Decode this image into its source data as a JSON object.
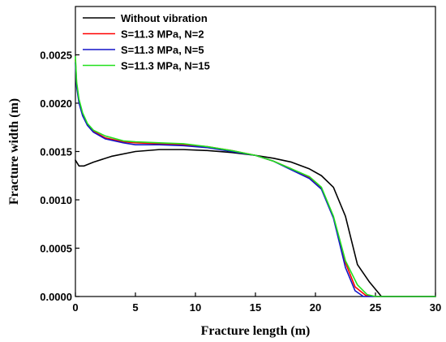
{
  "chart_data": {
    "type": "line",
    "xlabel": "Fracture length (m)",
    "ylabel": "Fracture width (m)",
    "xlim": [
      0,
      30
    ],
    "ylim": [
      0,
      0.003
    ],
    "xticks": [
      "0",
      "5",
      "10",
      "15",
      "20",
      "25",
      "30"
    ],
    "yticks": [
      "0.0000",
      "0.0005",
      "0.0010",
      "0.0015",
      "0.0020",
      "0.0025"
    ],
    "legend_position": "top-left",
    "series": [
      {
        "name": "Without vibration",
        "color": "#000000",
        "x": [
          0,
          0.3,
          0.7,
          1.5,
          3,
          5,
          7,
          9,
          11,
          13,
          15,
          16.5,
          18,
          19.5,
          20.5,
          21.5,
          22.5,
          23.5,
          24.5,
          25.5,
          30
        ],
        "y": [
          0.00141,
          0.00135,
          0.00135,
          0.00139,
          0.00145,
          0.0015,
          0.00152,
          0.00152,
          0.00151,
          0.00149,
          0.00146,
          0.00143,
          0.00139,
          0.00132,
          0.00125,
          0.00113,
          0.00083,
          0.00033,
          0.00015,
          0.0,
          0.0
        ]
      },
      {
        "name": "S=11.3 MPa, N=2",
        "color": "#ff0000",
        "x": [
          0,
          0.1,
          0.3,
          0.6,
          1,
          1.5,
          2.5,
          4,
          5,
          7,
          9,
          11,
          13,
          15,
          16.5,
          18,
          19.5,
          20.5,
          21.5,
          22.5,
          23.3,
          24.2,
          25,
          30
        ],
        "y": [
          0.00245,
          0.0022,
          0.00202,
          0.00189,
          0.00178,
          0.00171,
          0.00164,
          0.0016,
          0.00159,
          0.00158,
          0.00157,
          0.00155,
          0.00151,
          0.00146,
          0.0014,
          0.00132,
          0.00123,
          0.00112,
          0.00082,
          0.00035,
          0.0001,
          1e-05,
          0.0,
          0.0
        ]
      },
      {
        "name": "S=11.3 MPa, N=5",
        "color": "#1414c8",
        "x": [
          0,
          0.1,
          0.3,
          0.6,
          1,
          1.5,
          2.5,
          4,
          5,
          7,
          9,
          11,
          13,
          15,
          16.5,
          18,
          19.5,
          20.5,
          21.5,
          22.5,
          23.3,
          24,
          30
        ],
        "y": [
          0.00242,
          0.00217,
          0.002,
          0.00187,
          0.00177,
          0.0017,
          0.00163,
          0.00159,
          0.00157,
          0.00157,
          0.00156,
          0.00154,
          0.0015,
          0.00146,
          0.0014,
          0.00131,
          0.00122,
          0.00111,
          0.00081,
          0.0003,
          6e-05,
          0.0,
          0.0
        ]
      },
      {
        "name": "S=11.3 MPa, N=15",
        "color": "#22e01e",
        "x": [
          0,
          0.1,
          0.3,
          0.6,
          1,
          1.5,
          2.5,
          4,
          5,
          7,
          9,
          11,
          13,
          15,
          16.5,
          18,
          19.5,
          20.5,
          21.5,
          22.5,
          23.5,
          24.3,
          25,
          30
        ],
        "y": [
          0.00248,
          0.00222,
          0.00204,
          0.0019,
          0.00179,
          0.00172,
          0.00166,
          0.00161,
          0.0016,
          0.00159,
          0.00158,
          0.00155,
          0.00151,
          0.00146,
          0.0014,
          0.00132,
          0.00124,
          0.00113,
          0.00083,
          0.00037,
          0.00012,
          2e-05,
          0.0,
          0.0
        ]
      }
    ]
  }
}
